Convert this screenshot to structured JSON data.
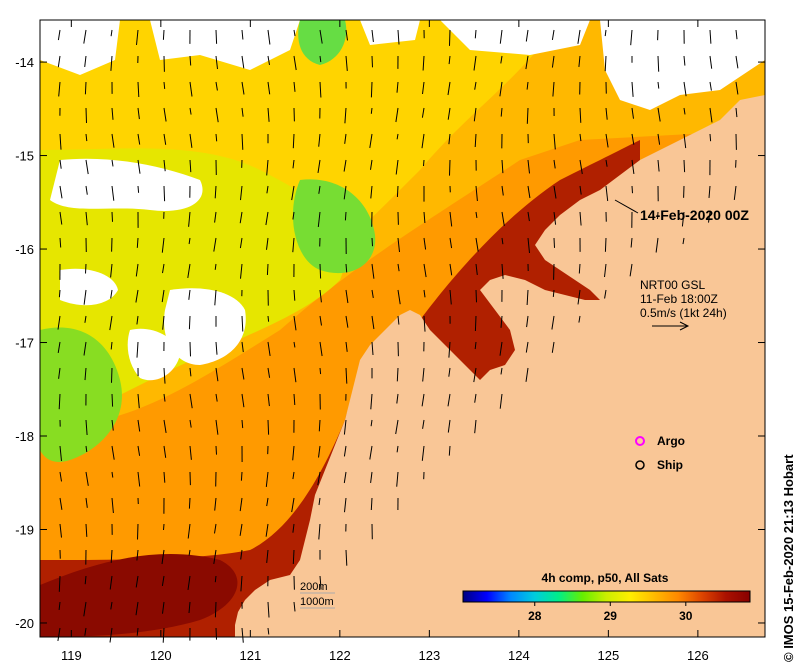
{
  "map": {
    "lon_ticks": [
      "119",
      "120",
      "121",
      "122",
      "123",
      "124",
      "125",
      "126"
    ],
    "lat_ticks": [
      "-14",
      "-15",
      "-16",
      "-17",
      "-18",
      "-19",
      "-20"
    ],
    "lon_range": [
      118.65,
      126.75
    ],
    "lat_range": [
      -20.15,
      -13.55
    ],
    "land_color": "#f9c696",
    "background": "#ffffff"
  },
  "labels": {
    "timestamp": "14-Feb-2020 00Z",
    "current_source": "NRT00 GSL",
    "current_time": "11-Feb 18:00Z",
    "current_scale": "0.5m/s (1kt 24h)",
    "depth_200": "200m",
    "depth_1000": "1000m"
  },
  "legend": {
    "argo": "Argo",
    "ship": "Ship",
    "argo_color": "#ff00ff"
  },
  "colorbar": {
    "title": "4h comp, p50, All Sats",
    "ticks": [
      "28",
      "29",
      "30"
    ],
    "tick_values": [
      28,
      29,
      30
    ],
    "range": [
      27.05,
      30.85
    ],
    "colors": [
      "#000080",
      "#0000ff",
      "#0088ff",
      "#00ccdd",
      "#00ee88",
      "#66ee00",
      "#ccee00",
      "#ffee00",
      "#ffbb00",
      "#ff8800",
      "#dd4400",
      "#aa1100",
      "#880000"
    ]
  },
  "credit": "© IMOS 15-Feb-2020 21:13 Hobart"
}
